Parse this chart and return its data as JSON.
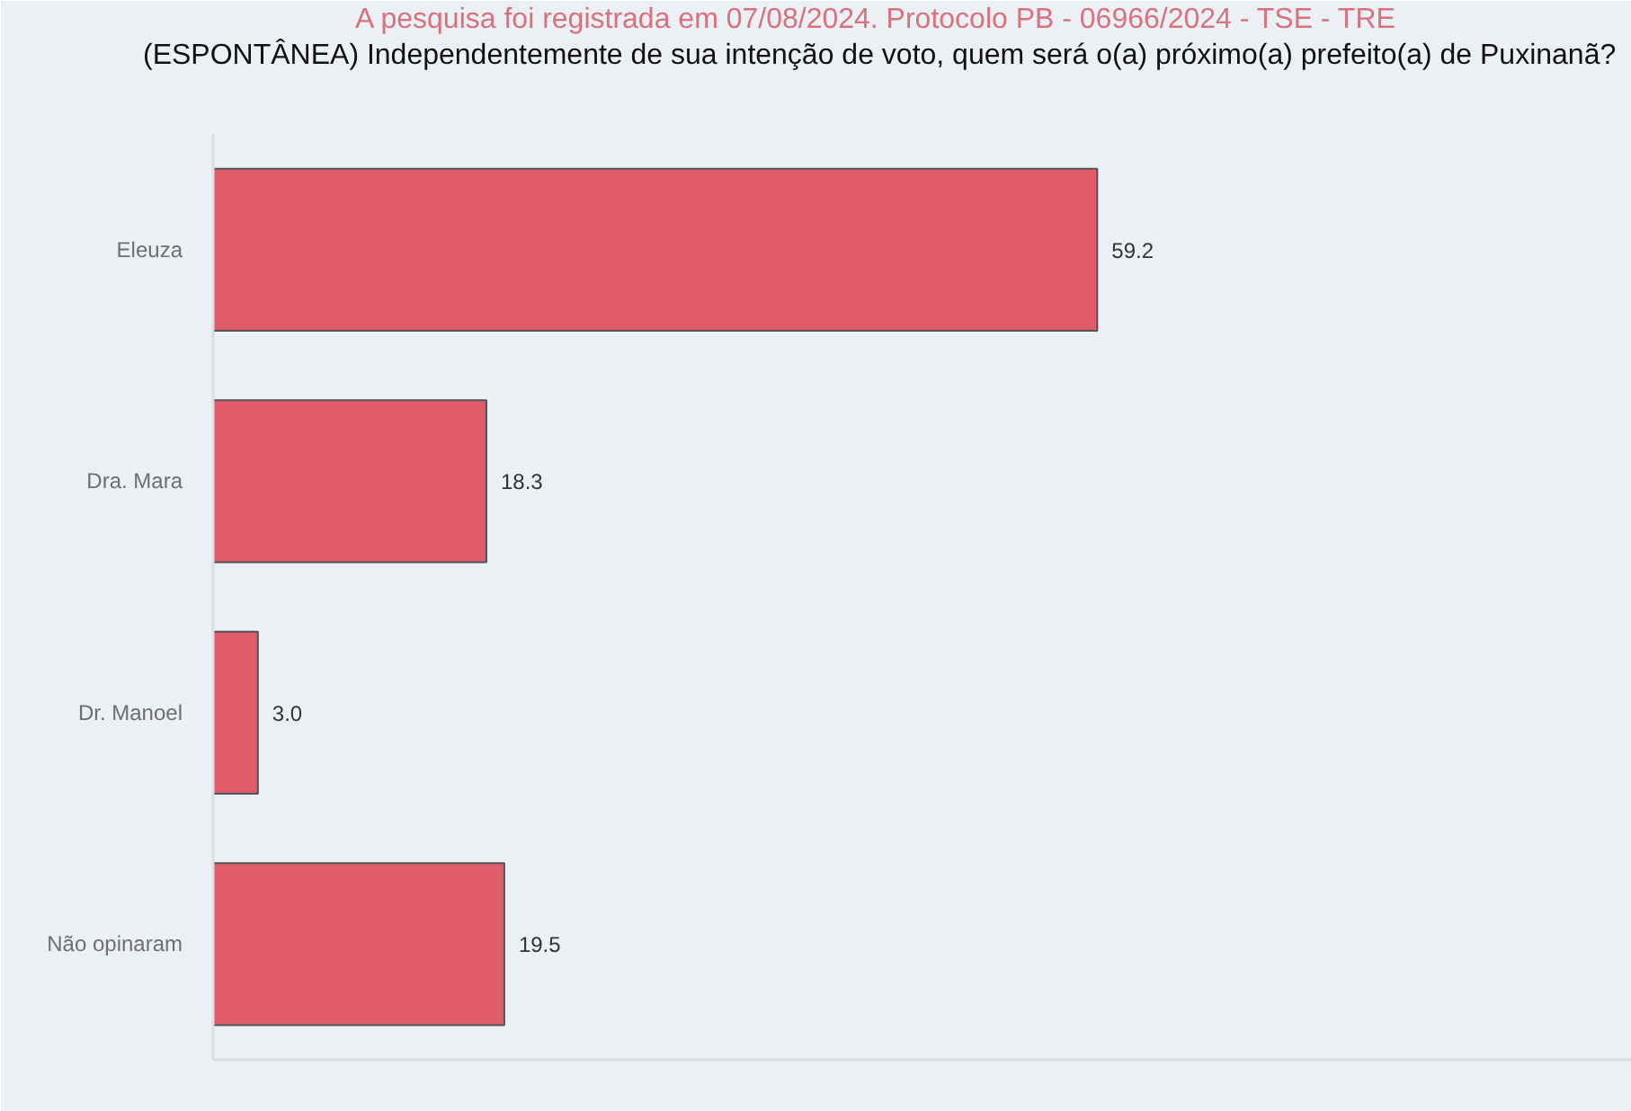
{
  "chart_data": {
    "type": "bar",
    "orientation": "horizontal",
    "title": "(ESPONTÂNEA) Independentemente de sua intenção de voto, quem será o(a) próximo(a) prefeito(a) de Puxinanã?",
    "subtitle": "A pesquisa foi registrada em 07/08/2024. Protocolo PB - 06966/2024 - TSE - TRE",
    "categories": [
      "Eleuza",
      "Dra. Mara",
      "Dr. Manoel",
      "Não opinaram"
    ],
    "values": [
      59.2,
      18.3,
      3.0,
      19.5
    ],
    "value_labels": [
      "59.2",
      "18.3",
      "3.0",
      "19.5"
    ],
    "color": "#e05c6b",
    "xlim": [
      0,
      95
    ],
    "tick_labels": "y",
    "grid": false
  }
}
